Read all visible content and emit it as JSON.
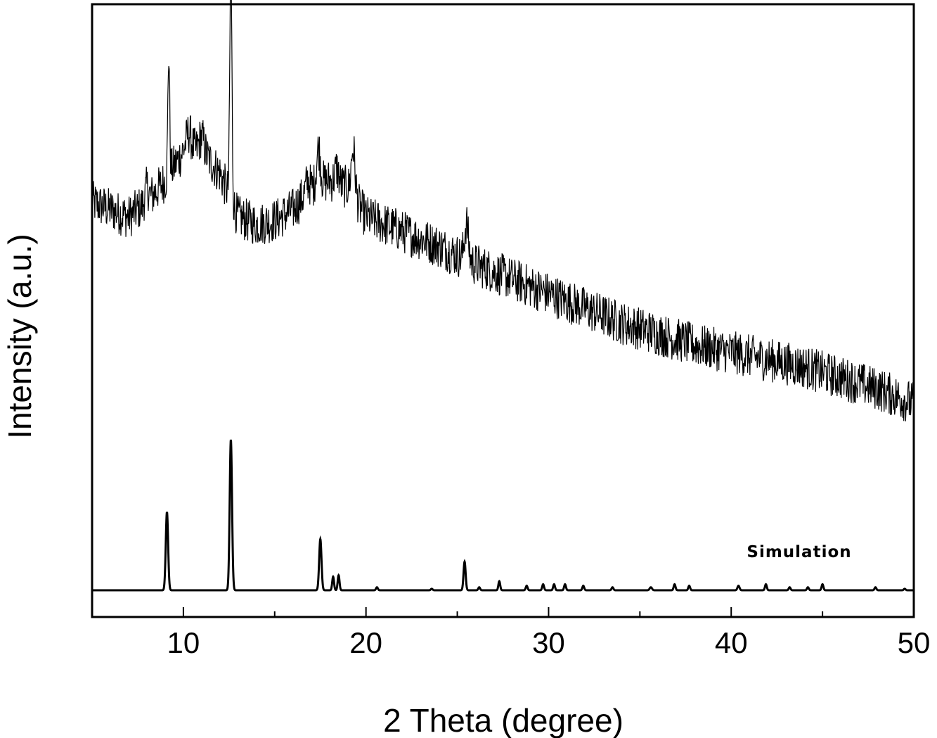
{
  "chart_data": {
    "type": "line",
    "xlabel": "2 Theta (degree)",
    "ylabel": "Intensity (a.u.)",
    "xlim": [
      5,
      50
    ],
    "x_ticks": [
      10,
      20,
      30,
      40,
      50
    ],
    "y_ticks_shown": false,
    "grid": false,
    "annotations": [
      {
        "text": "Simulation",
        "x": 41.5,
        "series": "simulated"
      }
    ],
    "series": [
      {
        "key": "experimental",
        "color": "#000000",
        "noise": 0.12,
        "baseline": [
          [
            5,
            0.62
          ],
          [
            6,
            0.6
          ],
          [
            7,
            0.58
          ],
          [
            8,
            0.62
          ],
          [
            9,
            0.68
          ],
          [
            10,
            0.76
          ],
          [
            11,
            0.76
          ],
          [
            12,
            0.7
          ],
          [
            13,
            0.58
          ],
          [
            14,
            0.56
          ],
          [
            15,
            0.57
          ],
          [
            16,
            0.6
          ],
          [
            17,
            0.66
          ],
          [
            18,
            0.68
          ],
          [
            19,
            0.66
          ],
          [
            20,
            0.58
          ],
          [
            22,
            0.54
          ],
          [
            24,
            0.5
          ],
          [
            26,
            0.45
          ],
          [
            28,
            0.41
          ],
          [
            30,
            0.37
          ],
          [
            32,
            0.33
          ],
          [
            34,
            0.29
          ],
          [
            36,
            0.26
          ],
          [
            38,
            0.23
          ],
          [
            40,
            0.21
          ],
          [
            42,
            0.19
          ],
          [
            44,
            0.17
          ],
          [
            46,
            0.14
          ],
          [
            48,
            0.11
          ],
          [
            50,
            0.07
          ]
        ],
        "peaks": [
          {
            "x": 8.0,
            "h": 0.04,
            "w": 0.15
          },
          {
            "x": 9.2,
            "h": 0.33,
            "w": 0.07
          },
          {
            "x": 10.3,
            "h": 0.05,
            "w": 0.2
          },
          {
            "x": 11.0,
            "h": 0.04,
            "w": 0.2
          },
          {
            "x": 12.6,
            "h": 0.64,
            "w": 0.08
          },
          {
            "x": 16.8,
            "h": 0.03,
            "w": 0.15
          },
          {
            "x": 17.4,
            "h": 0.1,
            "w": 0.15
          },
          {
            "x": 18.4,
            "h": 0.04,
            "w": 0.15
          },
          {
            "x": 19.3,
            "h": 0.13,
            "w": 0.15
          },
          {
            "x": 25.5,
            "h": 0.1,
            "w": 0.15
          }
        ]
      },
      {
        "key": "simulated",
        "color": "#000000",
        "baseline_value": 0.0,
        "peaks": [
          {
            "x": 9.1,
            "h": 0.52,
            "w": 0.09
          },
          {
            "x": 12.6,
            "h": 1.0,
            "w": 0.09
          },
          {
            "x": 17.5,
            "h": 0.34,
            "w": 0.09
          },
          {
            "x": 18.2,
            "h": 0.09,
            "w": 0.07
          },
          {
            "x": 18.5,
            "h": 0.1,
            "w": 0.07
          },
          {
            "x": 20.6,
            "h": 0.02,
            "w": 0.07
          },
          {
            "x": 23.6,
            "h": 0.01,
            "w": 0.07
          },
          {
            "x": 25.4,
            "h": 0.19,
            "w": 0.08
          },
          {
            "x": 26.2,
            "h": 0.02,
            "w": 0.07
          },
          {
            "x": 27.3,
            "h": 0.06,
            "w": 0.07
          },
          {
            "x": 28.8,
            "h": 0.03,
            "w": 0.07
          },
          {
            "x": 29.7,
            "h": 0.04,
            "w": 0.07
          },
          {
            "x": 30.3,
            "h": 0.04,
            "w": 0.07
          },
          {
            "x": 30.9,
            "h": 0.04,
            "w": 0.07
          },
          {
            "x": 31.9,
            "h": 0.03,
            "w": 0.07
          },
          {
            "x": 33.5,
            "h": 0.02,
            "w": 0.07
          },
          {
            "x": 35.6,
            "h": 0.02,
            "w": 0.09
          },
          {
            "x": 36.9,
            "h": 0.04,
            "w": 0.07
          },
          {
            "x": 37.7,
            "h": 0.03,
            "w": 0.07
          },
          {
            "x": 40.4,
            "h": 0.03,
            "w": 0.08
          },
          {
            "x": 41.9,
            "h": 0.04,
            "w": 0.07
          },
          {
            "x": 43.2,
            "h": 0.02,
            "w": 0.07
          },
          {
            "x": 44.2,
            "h": 0.02,
            "w": 0.07
          },
          {
            "x": 45.0,
            "h": 0.04,
            "w": 0.07
          },
          {
            "x": 47.9,
            "h": 0.02,
            "w": 0.07
          },
          {
            "x": 49.5,
            "h": 0.01,
            "w": 0.07
          }
        ]
      }
    ]
  }
}
